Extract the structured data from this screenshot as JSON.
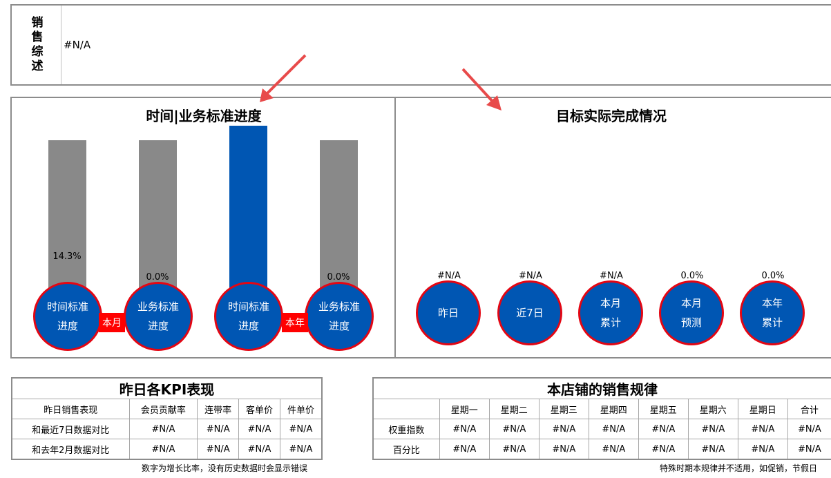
{
  "summary": {
    "label": "销售综述",
    "value": "#N/A"
  },
  "left_panel": {
    "title": "时间|业务标准进度",
    "bars": [
      {
        "fill_fraction": 0.143,
        "label": "14.3%",
        "circle": "时间标准进度"
      },
      {
        "fill_fraction": 0.0,
        "label": "0.0%",
        "circle": "业务标准进度"
      },
      {
        "fill_fraction": 1.0,
        "label": "",
        "circle": "时间标准进度"
      },
      {
        "fill_fraction": 0.0,
        "label": "0.0%",
        "circle": "业务标准进度"
      }
    ],
    "connector_month": "本月",
    "connector_year": "本年"
  },
  "right_panel": {
    "title": "目标实际完成情况",
    "items": [
      {
        "value": "#N/A",
        "label": "昨日"
      },
      {
        "value": "#N/A",
        "label": "近7日"
      },
      {
        "value": "#N/A",
        "label": "本月累计"
      },
      {
        "value": "0.0%",
        "label": "本月预测"
      },
      {
        "value": "0.0%",
        "label": "本年累计"
      }
    ]
  },
  "kpi_table": {
    "title": "昨日各KPI表现",
    "headers": [
      "昨日销售表现",
      "会员贡献率",
      "连带率",
      "客单价",
      "件单价"
    ],
    "rows": [
      [
        "和最近7日数据对比",
        "#N/A",
        "#N/A",
        "#N/A",
        "#N/A"
      ],
      [
        "和去年2月数据对比",
        "#N/A",
        "#N/A",
        "#N/A",
        "#N/A"
      ]
    ],
    "note": "数字为增长比率，没有历史数据时会显示错误"
  },
  "pattern_table": {
    "title": "本店铺的销售规律",
    "headers": [
      "",
      "星期一",
      "星期二",
      "星期三",
      "星期四",
      "星期五",
      "星期六",
      "星期日",
      "合计"
    ],
    "rows": [
      [
        "权重指数",
        "#N/A",
        "#N/A",
        "#N/A",
        "#N/A",
        "#N/A",
        "#N/A",
        "#N/A",
        "#N/A"
      ],
      [
        "百分比",
        "#N/A",
        "#N/A",
        "#N/A",
        "#N/A",
        "#N/A",
        "#N/A",
        "#N/A",
        "#N/A"
      ]
    ],
    "note": "特殊时期本规律并不适用，如促销，节假日"
  },
  "colors": {
    "blue": "#0056b3",
    "gray": "#898989",
    "red": "#e30613"
  }
}
